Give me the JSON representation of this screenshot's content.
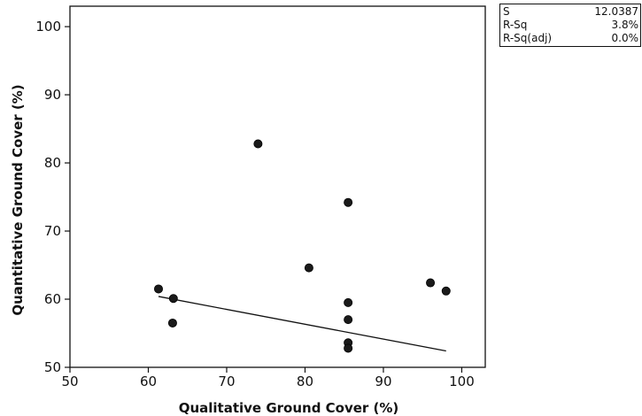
{
  "chart_data": {
    "type": "scatter",
    "xlabel": "Qualitative Ground Cover (%)",
    "ylabel": "Quantitative Ground Cover (%)",
    "xlim": [
      50,
      103
    ],
    "ylim": [
      50,
      103
    ],
    "x_ticks": [
      50,
      60,
      70,
      80,
      90,
      100
    ],
    "y_ticks": [
      50,
      60,
      70,
      80,
      90,
      100
    ],
    "grid": false,
    "points": [
      {
        "x": 61.3,
        "y": 61.5
      },
      {
        "x": 63.2,
        "y": 60.1
      },
      {
        "x": 63.1,
        "y": 56.5
      },
      {
        "x": 74.0,
        "y": 82.8
      },
      {
        "x": 80.5,
        "y": 64.6
      },
      {
        "x": 85.5,
        "y": 74.2
      },
      {
        "x": 85.5,
        "y": 59.5
      },
      {
        "x": 85.5,
        "y": 57.0
      },
      {
        "x": 85.5,
        "y": 53.6
      },
      {
        "x": 85.5,
        "y": 52.8
      },
      {
        "x": 96.0,
        "y": 62.4
      },
      {
        "x": 98.0,
        "y": 61.2
      }
    ],
    "fit_line": {
      "x": [
        61.3,
        98.0
      ],
      "y": [
        60.4,
        52.4
      ]
    }
  },
  "stats": [
    {
      "label": "S",
      "value": "12.0387"
    },
    {
      "label": "R-Sq",
      "value": "3.8%"
    },
    {
      "label": "R-Sq(adj)",
      "value": "0.0%"
    }
  ]
}
